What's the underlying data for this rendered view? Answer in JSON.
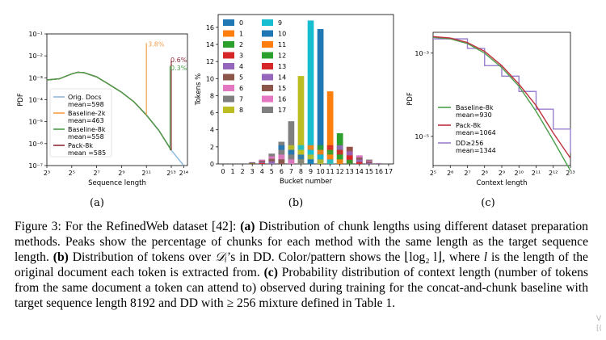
{
  "figure": {
    "panel_labels": [
      "(a)",
      "(b)",
      "(c)"
    ],
    "caption": {
      "figure_label": "Figure 3:",
      "part1": "For the RefinedWeb dataset [42]:",
      "a_label": "(a)",
      "a_text": "Distribution of chunk lengths using different dataset preparation methods. Peaks show the percentage of chunks for each method with the same length as the target sequence length.",
      "b_label": "(b)",
      "b_text_1": "Distribution of tokens over",
      "b_math_1": "𝒟ᵢ",
      "b_text_2": "’s in DD. Color/pattern shows the",
      "b_math_2": "⌊log₂ l⌋",
      "b_text_3": ", where",
      "b_math_3": "l",
      "b_text_4": "is the length of the original document each token is extracted from.",
      "c_label": "(c)",
      "c_text": "Probability distribution of context length (number of tokens from the same document a token can attend to) observed during training for the concat-and-chunk baseline with target sequence length 8192 and DD with ≥ 256 mixture defined in Table 1."
    },
    "corner_text": "V\n[("
  },
  "colors": {
    "orig": "#8fb9dc",
    "baseline2k": "#f5a04a",
    "baseline8k": "#4a9e4a",
    "pack8k": "#8b2d3a",
    "dd": "#9b7fd0"
  },
  "chart_data": [
    {
      "type": "line",
      "xlabel": "Sequence length",
      "ylabel": "PDF",
      "x_scale": "log2",
      "y_scale": "log10",
      "xticks": [
        "2³",
        "2⁵",
        "2⁷",
        "2⁹",
        "2¹¹",
        "2¹³",
        "2¹⁴"
      ],
      "yticks": [
        "10⁻¹",
        "10⁻²",
        "10⁻³",
        "10⁻⁴",
        "10⁻⁵",
        "10⁻⁶",
        "10⁻⁷"
      ],
      "annotations": [
        {
          "text": "3.8%",
          "color": "#f5a04a"
        },
        {
          "text": "0.6%",
          "color": "#8b2d3a"
        },
        {
          "text": "0.3%",
          "color": "#4a9e4a"
        }
      ],
      "series": [
        {
          "name": "Orig. Docs",
          "mean_label": "mean=598",
          "color": "#8fb9dc",
          "x": [
            8,
            16,
            32,
            45,
            64,
            128,
            256,
            512,
            1024,
            2048,
            4096,
            8192,
            16384
          ],
          "y": [
            0.0008,
            0.0009,
            0.0015,
            0.0018,
            0.0017,
            0.0011,
            0.0005,
            0.00022,
            8e-05,
            2e-05,
            4e-06,
            5e-07,
            1e-07
          ]
        },
        {
          "name": "Baseline-2k",
          "mean_label": "mean=463",
          "color": "#f5a04a",
          "x": [
            8,
            16,
            32,
            45,
            64,
            128,
            256,
            512,
            1024,
            2048
          ],
          "y": [
            0.0008,
            0.0009,
            0.0015,
            0.0018,
            0.0017,
            0.0011,
            0.0005,
            0.00022,
            8e-05,
            2e-05
          ]
        },
        {
          "name": "Baseline-8k",
          "mean_label": "mean=558",
          "color": "#4a9e4a",
          "x": [
            8,
            16,
            32,
            45,
            64,
            128,
            256,
            512,
            1024,
            2048,
            4096,
            8192
          ],
          "y": [
            0.0008,
            0.0009,
            0.0015,
            0.0018,
            0.0017,
            0.0011,
            0.0005,
            0.00022,
            8e-05,
            2e-05,
            4e-06,
            5e-07
          ]
        },
        {
          "name": "Pack-8k",
          "mean_label": "mean =585",
          "color": "#8b2d3a",
          "x": [
            8,
            16,
            32,
            45,
            64,
            128,
            256,
            512,
            1024,
            2048,
            4096,
            8192
          ],
          "y": [
            0.0008,
            0.0009,
            0.0015,
            0.0018,
            0.0017,
            0.0011,
            0.0005,
            0.00022,
            8e-05,
            2e-05,
            4e-06,
            5e-07
          ]
        }
      ]
    },
    {
      "type": "bar",
      "xlabel": "Bucket number",
      "ylabel": "Tokens %",
      "categories": [
        "0",
        "1",
        "2",
        "3",
        "4",
        "5",
        "6",
        "7",
        "8",
        "9",
        "10",
        "11",
        "12",
        "13",
        "14",
        "15",
        "16",
        "17"
      ],
      "yticks": [
        "0",
        "2",
        "4",
        "6",
        "8",
        "10",
        "12",
        "14",
        "16"
      ],
      "ylim": [
        0,
        17.5
      ],
      "legend": [
        "0",
        "1",
        "2",
        "3",
        "4",
        "5",
        "6",
        "7",
        "8",
        "9",
        "10",
        "11",
        "12",
        "13",
        "14",
        "15",
        "16",
        "17"
      ],
      "legend_colors": [
        "#1f77b4",
        "#ff7f0e",
        "#2ca02c",
        "#d62728",
        "#9467bd",
        "#8c564b",
        "#e377c2",
        "#7f7f7f",
        "#bcbd22",
        "#17becf",
        "#1f77b4",
        "#ff7f0e",
        "#2ca02c",
        "#d62728",
        "#9467bd",
        "#8c564b",
        "#e377c2",
        "#7f7f7f"
      ],
      "values": [
        0,
        0,
        0,
        0.2,
        0.5,
        1.2,
        2.6,
        5.0,
        10.3,
        16.8,
        15.8,
        8.5,
        3.6,
        2.0,
        1.0,
        0.5,
        0.1,
        0
      ]
    },
    {
      "type": "line",
      "xlabel": "Context length",
      "ylabel": "PDF",
      "x_scale": "log2",
      "y_scale": "log10",
      "xticks": [
        "2⁵",
        "2⁶",
        "2⁷",
        "2⁸",
        "2⁹",
        "2¹⁰",
        "2¹¹",
        "2¹²",
        "2¹³"
      ],
      "yticks": [
        "10⁻³",
        "10⁻⁵"
      ],
      "series": [
        {
          "name": "Baseline-8k",
          "mean_label": "mean=930",
          "color": "#4a9e4a",
          "x": [
            32,
            64,
            128,
            256,
            512,
            1024,
            2048,
            4096,
            8192
          ],
          "y": [
            0.0024,
            0.0022,
            0.0017,
            0.001,
            0.00045,
            0.00016,
            4e-05,
            8e-06,
            1.5e-06
          ]
        },
        {
          "name": "Pack-8k",
          "mean_label": "mean=1064",
          "color": "#c0313d",
          "x": [
            32,
            64,
            128,
            256,
            512,
            1024,
            2048,
            4096,
            8192
          ],
          "y": [
            0.0025,
            0.0023,
            0.0018,
            0.0011,
            0.0005,
            0.00018,
            5.5e-05,
            1.2e-05,
            3e-06
          ]
        },
        {
          "name": "DD≥256",
          "mean_label": "mean=1344",
          "color": "#9b7fd0",
          "x": [
            32,
            64,
            128,
            256,
            512,
            1024,
            2048,
            4096,
            8192
          ],
          "y": [
            0.0022,
            0.0022,
            0.0013,
            0.0005,
            0.00028,
            0.00012,
            4.5e-05,
            1.5e-05,
            4e-06
          ]
        }
      ]
    }
  ]
}
